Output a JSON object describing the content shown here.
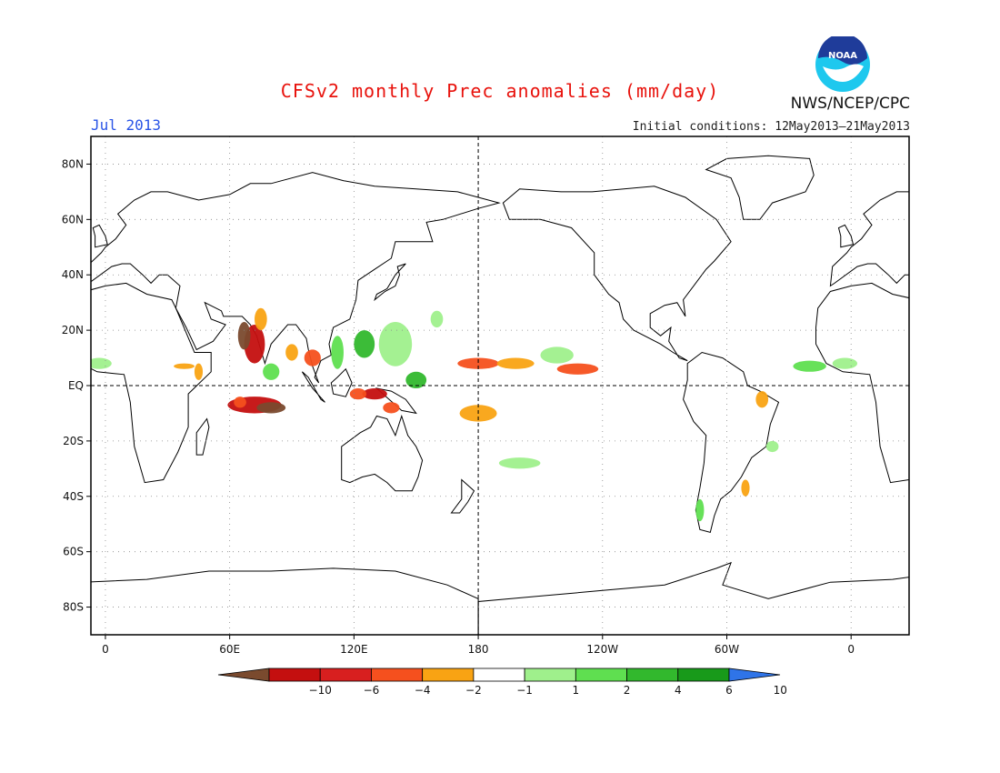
{
  "header": {
    "title": "CFSv2 monthly Prec anomalies (mm/day)",
    "month": "Jul 2013",
    "initial_conditions": "Initial conditions: 12May2013–21May2013",
    "organization": "NWS/NCEP/CPC",
    "logo_text": "NOAA"
  },
  "map": {
    "lat_labels": [
      "80N",
      "60N",
      "40N",
      "20N",
      "EQ",
      "20S",
      "40S",
      "60S",
      "80S"
    ],
    "lat_values": [
      80,
      60,
      40,
      20,
      0,
      -20,
      -40,
      -60,
      -80
    ],
    "lon_labels": [
      "0",
      "60E",
      "120E",
      "180",
      "120W",
      "60W",
      "0"
    ],
    "lon_values": [
      0,
      60,
      120,
      180,
      240,
      300,
      360
    ],
    "lon_range": [
      -7,
      388
    ],
    "lat_range": [
      -90,
      90
    ],
    "reference_lines": {
      "equator": 0,
      "dateline": 180
    },
    "grid": "dotted"
  },
  "colorbar": {
    "labels": [
      "−10",
      "−6",
      "−4",
      "−2",
      "−1",
      "1",
      "2",
      "4",
      "6",
      "10"
    ],
    "colors": [
      "#7a4a2e",
      "#c40f0f",
      "#d81f1f",
      "#f5501e",
      "#f9a313",
      "#ffffff",
      "#9ff08c",
      "#5fdf50",
      "#32b82d",
      "#189a1a",
      "#2f74e8"
    ]
  },
  "anomalies": [
    {
      "lon": 72,
      "lat": 15,
      "rx": 5,
      "ry": 7,
      "color": "#c40f0f"
    },
    {
      "lon": 67,
      "lat": 18,
      "rx": 3,
      "ry": 5,
      "color": "#7a4a2e"
    },
    {
      "lon": 75,
      "lat": 24,
      "rx": 3,
      "ry": 4,
      "color": "#f9a313"
    },
    {
      "lon": 80,
      "lat": 5,
      "rx": 4,
      "ry": 3,
      "color": "#5fdf50"
    },
    {
      "lon": 72,
      "lat": -7,
      "rx": 13,
      "ry": 3,
      "color": "#c40f0f"
    },
    {
      "lon": 80,
      "lat": -8,
      "rx": 7,
      "ry": 2,
      "color": "#7a4a2e"
    },
    {
      "lon": 65,
      "lat": -6,
      "rx": 3,
      "ry": 2,
      "color": "#f5501e"
    },
    {
      "lon": 90,
      "lat": 12,
      "rx": 3,
      "ry": 3,
      "color": "#f9a313"
    },
    {
      "lon": 100,
      "lat": 10,
      "rx": 4,
      "ry": 3,
      "color": "#f5501e"
    },
    {
      "lon": 112,
      "lat": 12,
      "rx": 3,
      "ry": 6,
      "color": "#5fdf50"
    },
    {
      "lon": 125,
      "lat": 15,
      "rx": 5,
      "ry": 5,
      "color": "#32b82d"
    },
    {
      "lon": 140,
      "lat": 15,
      "rx": 8,
      "ry": 8,
      "color": "#9ff08c"
    },
    {
      "lon": 150,
      "lat": 2,
      "rx": 5,
      "ry": 3,
      "color": "#32b82d"
    },
    {
      "lon": 130,
      "lat": -3,
      "rx": 6,
      "ry": 2,
      "color": "#c40f0f"
    },
    {
      "lon": 122,
      "lat": -3,
      "rx": 4,
      "ry": 2,
      "color": "#f5501e"
    },
    {
      "lon": 138,
      "lat": -8,
      "rx": 4,
      "ry": 2,
      "color": "#f5501e"
    },
    {
      "lon": 160,
      "lat": 24,
      "rx": 3,
      "ry": 3,
      "color": "#9ff08c"
    },
    {
      "lon": 180,
      "lat": 8,
      "rx": 10,
      "ry": 2,
      "color": "#f5501e"
    },
    {
      "lon": 198,
      "lat": 8,
      "rx": 9,
      "ry": 2,
      "color": "#f9a313"
    },
    {
      "lon": 180,
      "lat": -10,
      "rx": 9,
      "ry": 3,
      "color": "#f9a313"
    },
    {
      "lon": 228,
      "lat": 6,
      "rx": 10,
      "ry": 2,
      "color": "#f5501e"
    },
    {
      "lon": 218,
      "lat": 11,
      "rx": 8,
      "ry": 3,
      "color": "#9ff08c"
    },
    {
      "lon": 200,
      "lat": -28,
      "rx": 10,
      "ry": 2,
      "color": "#9ff08c"
    },
    {
      "lon": 317,
      "lat": -5,
      "rx": 3,
      "ry": 3,
      "color": "#f9a313"
    },
    {
      "lon": 322,
      "lat": -22,
      "rx": 3,
      "ry": 2,
      "color": "#9ff08c"
    },
    {
      "lon": 309,
      "lat": -37,
      "rx": 2,
      "ry": 3,
      "color": "#f9a313"
    },
    {
      "lon": 287,
      "lat": -45,
      "rx": 2,
      "ry": 4,
      "color": "#5fdf50"
    },
    {
      "lon": -3,
      "lat": 8,
      "rx": 6,
      "ry": 2,
      "color": "#9ff08c"
    },
    {
      "lon": 340,
      "lat": 7,
      "rx": 8,
      "ry": 2,
      "color": "#5fdf50"
    },
    {
      "lon": 38,
      "lat": 7,
      "rx": 5,
      "ry": 1,
      "color": "#f9a313"
    },
    {
      "lon": 45,
      "lat": 5,
      "rx": 2,
      "ry": 3,
      "color": "#f9a313"
    }
  ]
}
